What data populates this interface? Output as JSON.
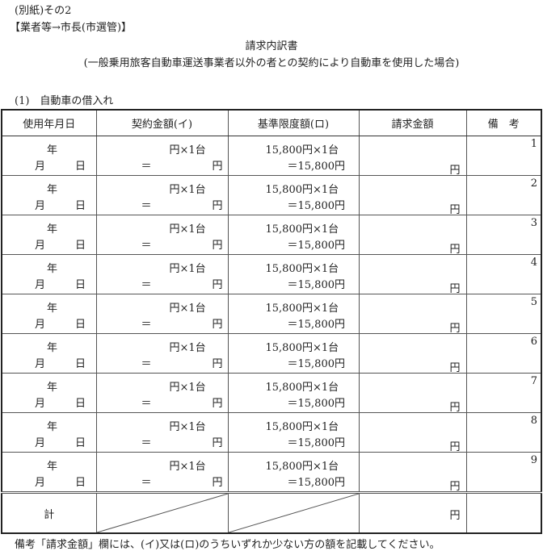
{
  "header": {
    "annex": "(別紙)その2",
    "route": "【業者等→市長(市選管)】",
    "title": "請求内訳書",
    "subtitle": "(一般乗用旅客自動車運送事業者以外の者との契約により自動車を使用した場合)",
    "section": "(1)　自動車の借入れ"
  },
  "table": {
    "columns": [
      "使用年月日",
      "契約金額(イ)",
      "基準限度額(ロ)",
      "請求金額",
      "備　考"
    ],
    "row_template": {
      "year": "年",
      "month": "月",
      "day": "日",
      "contract_line1": "円×1台",
      "contract_eq": "＝",
      "contract_yen": "円",
      "limit_line1": "15,800円×1台",
      "limit_line2": "＝15,800円",
      "claim_yen": "円"
    },
    "row_numbers": [
      "1",
      "2",
      "3",
      "4",
      "5",
      "6",
      "7",
      "8",
      "9"
    ],
    "total_label": "計",
    "total_yen": "円"
  },
  "footnote": "備考「請求金額」欄には、(イ)又は(ロ)のうちいずれか少ない方の額を記載してください。"
}
